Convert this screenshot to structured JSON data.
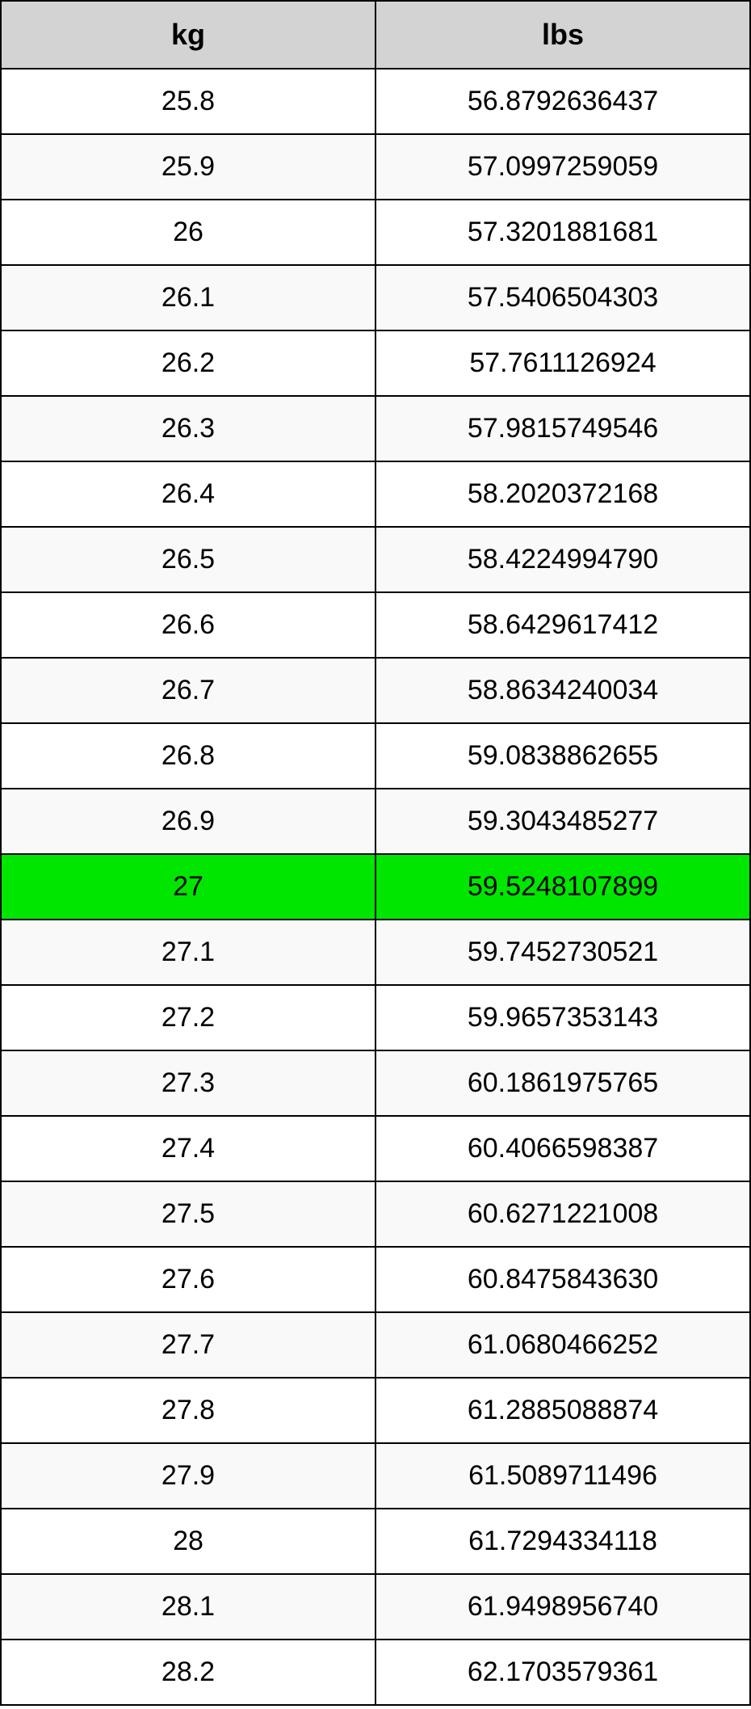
{
  "table": {
    "type": "table",
    "columns": [
      "kg",
      "lbs"
    ],
    "column_widths": [
      "50%",
      "50%"
    ],
    "header_bg_color": "#d3d3d3",
    "header_font_size": 36,
    "header_font_weight": "bold",
    "cell_font_size": 34,
    "border_color": "#000000",
    "row_bg_odd": "#ffffff",
    "row_bg_even": "#f9f9f9",
    "highlight_bg": "#00e600",
    "highlight_row_index": 12,
    "rows": [
      [
        "25.8",
        "56.8792636437"
      ],
      [
        "25.9",
        "57.0997259059"
      ],
      [
        "26",
        "57.3201881681"
      ],
      [
        "26.1",
        "57.5406504303"
      ],
      [
        "26.2",
        "57.7611126924"
      ],
      [
        "26.3",
        "57.9815749546"
      ],
      [
        "26.4",
        "58.2020372168"
      ],
      [
        "26.5",
        "58.4224994790"
      ],
      [
        "26.6",
        "58.6429617412"
      ],
      [
        "26.7",
        "58.8634240034"
      ],
      [
        "26.8",
        "59.0838862655"
      ],
      [
        "26.9",
        "59.3043485277"
      ],
      [
        "27",
        "59.5248107899"
      ],
      [
        "27.1",
        "59.7452730521"
      ],
      [
        "27.2",
        "59.9657353143"
      ],
      [
        "27.3",
        "60.1861975765"
      ],
      [
        "27.4",
        "60.4066598387"
      ],
      [
        "27.5",
        "60.6271221008"
      ],
      [
        "27.6",
        "60.8475843630"
      ],
      [
        "27.7",
        "61.0680466252"
      ],
      [
        "27.8",
        "61.2885088874"
      ],
      [
        "27.9",
        "61.5089711496"
      ],
      [
        "28",
        "61.7294334118"
      ],
      [
        "28.1",
        "61.9498956740"
      ],
      [
        "28.2",
        "62.1703579361"
      ]
    ]
  }
}
